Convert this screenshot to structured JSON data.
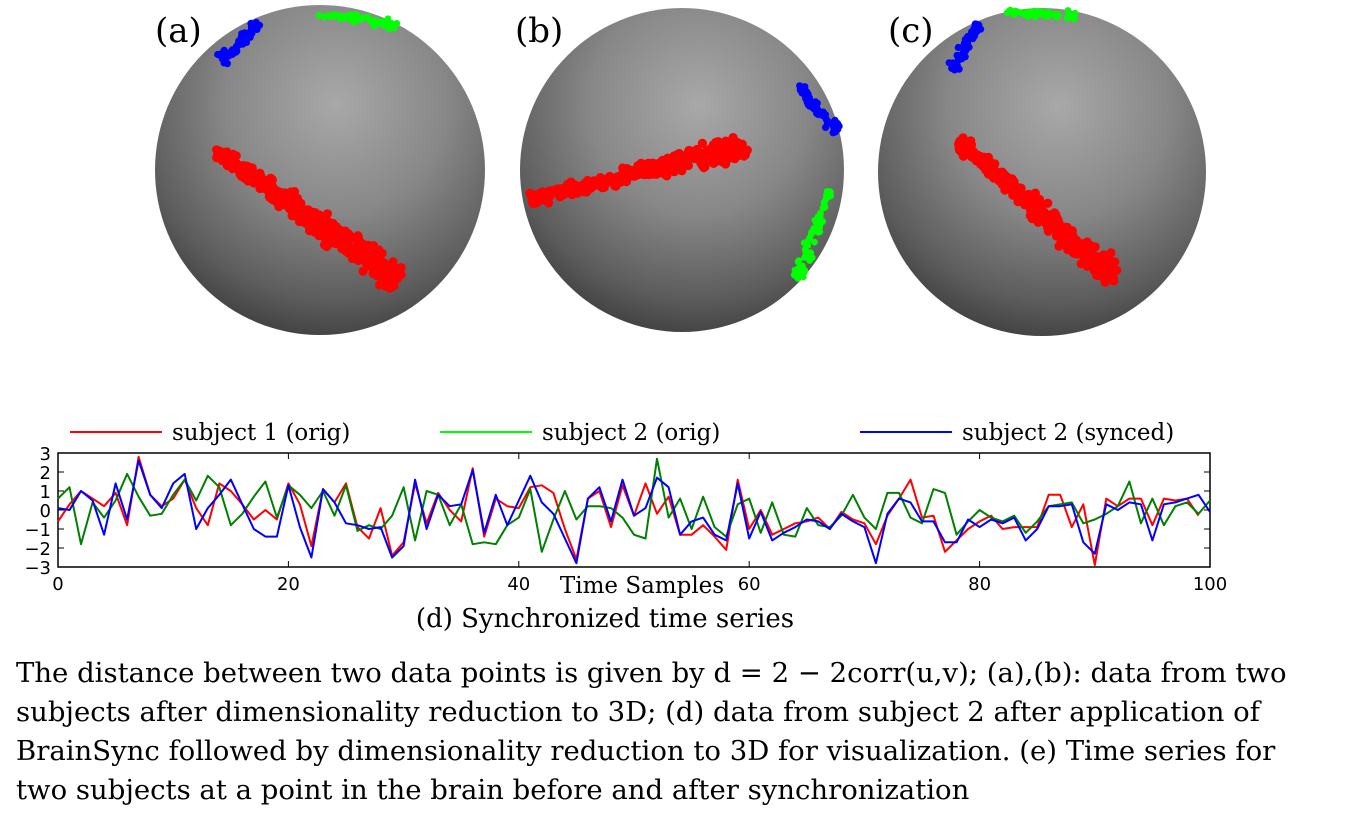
{
  "figure": {
    "panels": [
      {
        "label": "(a)",
        "colors": {
          "red": "#ff0000",
          "green": "#00ff00",
          "blue": "#0000ff"
        }
      },
      {
        "label": "(b)"
      },
      {
        "label": "(c)"
      }
    ],
    "sphere_color": "#7a7a7a",
    "point_colors": {
      "cluster_1": "#ff0000",
      "cluster_2": "#00ff00",
      "cluster_3": "#0000ff"
    }
  },
  "chart_data": {
    "type": "line",
    "title": "",
    "xlabel": "Time Samples",
    "ylabel": "",
    "xlim": [
      0,
      100
    ],
    "ylim": [
      -3,
      3
    ],
    "xticks": [
      "0",
      "20",
      "40",
      "60",
      "80",
      "100"
    ],
    "yticks": [
      "3",
      "2",
      "1",
      "0",
      "−1",
      "−2",
      "−3"
    ],
    "legend_position": "top",
    "series": [
      {
        "name": "subject 1 (orig)",
        "color": "#ff0000",
        "values": [
          -0.6,
          0.3,
          1.0,
          0.6,
          0.2,
          0.9,
          -0.8,
          2.8,
          0.8,
          0.2,
          0.6,
          1.6,
          0.1,
          -0.8,
          1.4,
          1.0,
          0.3,
          -0.5,
          0.0,
          -0.5,
          1.4,
          0.3,
          -1.9,
          1.1,
          0.4,
          1.4,
          -0.9,
          -1.5,
          0.1,
          -2.4,
          -1.7,
          1.4,
          -0.7,
          0.9,
          0.0,
          -0.6,
          2.2,
          -1.4,
          0.6,
          0.2,
          0.1,
          1.2,
          1.3,
          0.9,
          -1.0,
          -2.6,
          0.6,
          1.0,
          -0.9,
          1.3,
          -0.3,
          1.4,
          -0.2,
          0.7,
          -1.3,
          -1.3,
          -0.8,
          -1.4,
          -2.1,
          1.6,
          -1.0,
          0.0,
          -1.3,
          -1.0,
          -0.7,
          -0.6,
          -0.4,
          -1.0,
          -0.1,
          -0.5,
          -0.7,
          -1.8,
          -0.3,
          0.6,
          1.6,
          -0.4,
          -0.3,
          -2.2,
          -1.6,
          -1.0,
          -0.6,
          -0.3,
          -1.0,
          -0.9,
          -0.9,
          -0.9,
          0.8,
          0.8,
          -0.9,
          0.3,
          -2.9,
          0.6,
          0.2,
          0.6,
          0.6,
          -0.8,
          0.6,
          0.5,
          0.6,
          -0.3
        ]
      },
      {
        "name": "subject 2 (orig)",
        "color": "#008000",
        "values": [
          0.6,
          1.2,
          -1.8,
          0.4,
          -0.4,
          0.5,
          1.9,
          0.7,
          -0.3,
          -0.2,
          0.8,
          1.6,
          0.5,
          1.8,
          1.2,
          -0.8,
          -0.2,
          0.7,
          1.5,
          -0.4,
          1.3,
          0.8,
          0.1,
          1.0,
          -0.3,
          1.3,
          -1.1,
          -0.8,
          -1.0,
          -0.3,
          1.2,
          -1.6,
          1.0,
          0.8,
          -0.8,
          0.3,
          -1.8,
          -1.7,
          -1.8,
          -0.8,
          -0.4,
          1.1,
          -2.2,
          -0.5,
          1.0,
          -0.5,
          0.2,
          0.2,
          0.1,
          -0.4,
          -1.3,
          -1.5,
          2.7,
          -0.4,
          0.6,
          -1.0,
          0.7,
          -0.9,
          -1.4,
          0.3,
          0.6,
          -1.2,
          0.4,
          -1.3,
          -1.4,
          0.1,
          -0.8,
          -0.9,
          -0.3,
          0.8,
          -0.4,
          -1.0,
          0.9,
          0.9,
          -0.4,
          -0.7,
          1.1,
          0.9,
          -1.3,
          -0.6,
          0.0,
          -0.4,
          -0.6,
          -0.3,
          -1.2,
          -0.6,
          0.2,
          0.3,
          0.4,
          -0.7,
          -0.5,
          -0.2,
          0.2,
          1.5,
          -0.7,
          0.6,
          -0.8,
          0.2,
          0.4,
          -0.2,
          0.5
        ]
      },
      {
        "name": "subject 2 (synced)",
        "color": "#0000ff",
        "values": [
          0.1,
          0.0,
          1.0,
          0.5,
          -1.3,
          1.4,
          -0.5,
          2.6,
          0.8,
          0.1,
          1.4,
          1.9,
          -1.0,
          0.1,
          0.8,
          1.6,
          0.3,
          -1.0,
          -1.4,
          -1.4,
          1.3,
          -0.9,
          -2.5,
          1.1,
          0.4,
          -0.7,
          -0.8,
          -1.0,
          -0.9,
          -2.5,
          -1.9,
          1.6,
          -1.0,
          0.8,
          0.2,
          0.3,
          2.1,
          -1.2,
          0.8,
          -0.8,
          0.5,
          1.8,
          0.4,
          -0.2,
          -1.5,
          -2.8,
          0.6,
          1.2,
          -0.6,
          1.6,
          -0.3,
          0.1,
          1.7,
          1.2,
          -1.3,
          -0.6,
          -0.4,
          -1.3,
          -1.6,
          1.4,
          -1.5,
          -0.1,
          -1.6,
          -1.2,
          -0.9,
          -0.5,
          -0.6,
          -1.0,
          -0.2,
          -0.6,
          -0.9,
          -2.8,
          -0.2,
          0.6,
          0.4,
          -0.6,
          -0.6,
          -1.7,
          -1.7,
          -0.5,
          -0.9,
          -0.5,
          -0.7,
          -0.4,
          -1.6,
          -1.0,
          0.2,
          0.2,
          0.3,
          -1.7,
          -2.3,
          0.3,
          0.0,
          0.4,
          0.3,
          -1.6,
          0.3,
          0.4,
          0.6,
          0.8,
          -0.1
        ]
      }
    ]
  },
  "caption": {
    "text": "(d) Synchronized time series"
  },
  "body": {
    "lines": [
      "The distance between two data points is given by d = 2 − 2corr(u,v); (a),(b): data from two",
      "subjects after dimensionality reduction to 3D; (d) data from subject 2 after application of",
      "BrainSync followed by dimensionality reduction to 3D for visualization. (e) Time series for",
      "two subjects at a point in the brain before and after synchronization"
    ]
  }
}
